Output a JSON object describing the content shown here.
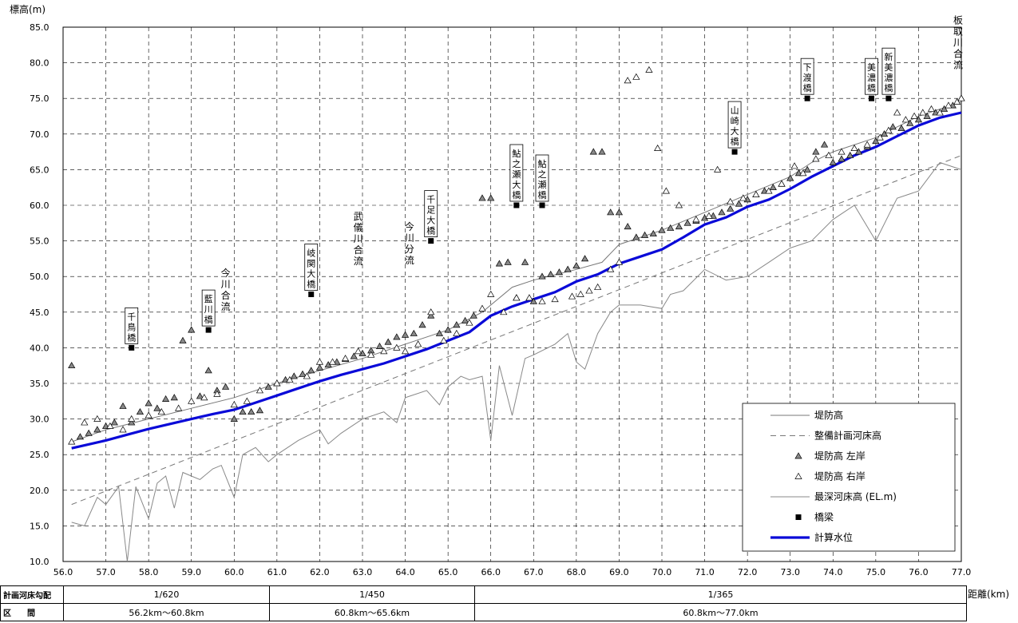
{
  "chart_data": {
    "type": "line",
    "ylabel": "標高(m)",
    "xlabel": "距離(km)",
    "xlim": [
      56.0,
      77.0
    ],
    "ylim": [
      10.0,
      85.0
    ],
    "x_ticks": [
      56.0,
      57.0,
      58.0,
      59.0,
      60.0,
      61.0,
      62.0,
      63.0,
      64.0,
      65.0,
      66.0,
      67.0,
      68.0,
      69.0,
      70.0,
      71.0,
      72.0,
      73.0,
      74.0,
      75.0,
      76.0,
      77.0
    ],
    "x_tick_labels": [
      "56.0",
      "57.0",
      "58.0",
      "59.0",
      "60.0",
      "61.0",
      "62.0",
      "63.0",
      "64.0",
      "65.0",
      "66.0",
      "67.0",
      "68.0",
      "69.0",
      "70.0",
      "71.0",
      "72.0",
      "73.0",
      "74.0",
      "75.0",
      "76.0",
      "77.0"
    ],
    "y_ticks": [
      10.0,
      15.0,
      20.0,
      25.0,
      30.0,
      35.0,
      40.0,
      45.0,
      50.0,
      55.0,
      60.0,
      65.0,
      70.0,
      75.0,
      80.0,
      85.0
    ],
    "y_tick_labels": [
      "10.0",
      "15.0",
      "20.0",
      "25.0",
      "30.0",
      "35.0",
      "40.0",
      "45.0",
      "50.0",
      "55.0",
      "60.0",
      "65.0",
      "70.0",
      "75.0",
      "80.0",
      "85.0"
    ],
    "grid": true,
    "legend_position": "bottom-right",
    "colors": {
      "water": "#0a0ad8",
      "levee": "#888888",
      "bed": "#888888",
      "plan": "#888888"
    },
    "legend": [
      {
        "key": "levee",
        "label": "堤防高"
      },
      {
        "key": "plan",
        "label": "整備計画河床高"
      },
      {
        "key": "left",
        "label": "堤防高 左岸"
      },
      {
        "key": "right",
        "label": "堤防高 右岸"
      },
      {
        "key": "bed",
        "label": "最深河床高 (EL.m)"
      },
      {
        "key": "bridge",
        "label": "橋梁"
      },
      {
        "key": "water",
        "label": "計算水位"
      }
    ],
    "series": [
      {
        "name": "堤防高",
        "key": "levee",
        "x": [
          56.2,
          57.0,
          58.0,
          59.0,
          60.0,
          61.0,
          62.0,
          63.0,
          64.0,
          65.0,
          65.8,
          66.5,
          67.0,
          68.0,
          68.6,
          69.0,
          70.0,
          71.0,
          72.0,
          73.0,
          73.5,
          74.0,
          75.0,
          76.0,
          77.0
        ],
        "y": [
          26.8,
          28.5,
          30.0,
          31.5,
          33.0,
          35.0,
          36.8,
          38.5,
          40.5,
          42.5,
          45.0,
          48.5,
          49.5,
          51.0,
          52.0,
          54.5,
          56.5,
          59.0,
          61.5,
          64.0,
          66.0,
          67.5,
          69.5,
          72.5,
          74.5
        ]
      },
      {
        "name": "整備計画河床高",
        "key": "plan",
        "x": [
          56.2,
          77.0
        ],
        "y": [
          18.0,
          67.0
        ]
      },
      {
        "name": "最深河床高 (EL.m)",
        "key": "bed",
        "x": [
          56.2,
          56.5,
          56.8,
          57.0,
          57.3,
          57.5,
          57.7,
          58.0,
          58.2,
          58.4,
          58.6,
          58.8,
          59.0,
          59.2,
          59.5,
          59.7,
          60.0,
          60.2,
          60.5,
          60.8,
          61.0,
          61.5,
          62.0,
          62.2,
          62.5,
          63.0,
          63.5,
          63.8,
          64.0,
          64.5,
          64.8,
          65.0,
          65.3,
          65.5,
          65.8,
          66.0,
          66.2,
          66.5,
          66.8,
          67.0,
          67.5,
          67.8,
          68.0,
          68.2,
          68.5,
          68.8,
          69.0,
          69.5,
          70.0,
          70.2,
          70.5,
          71.0,
          71.5,
          72.0,
          72.5,
          73.0,
          73.5,
          74.0,
          74.5,
          75.0,
          75.5,
          76.0,
          76.5,
          77.0
        ],
        "y": [
          15.5,
          15.0,
          19.0,
          18.0,
          20.5,
          10.0,
          20.5,
          16.0,
          21.0,
          22.0,
          17.5,
          22.5,
          22.0,
          21.5,
          23.0,
          23.5,
          19.0,
          25.0,
          26.0,
          24.0,
          25.0,
          27.0,
          28.5,
          26.5,
          28.0,
          30.0,
          31.0,
          29.5,
          33.0,
          34.0,
          32.0,
          34.5,
          36.0,
          35.5,
          36.0,
          27.0,
          37.5,
          30.5,
          38.5,
          39.0,
          40.5,
          42.0,
          38.0,
          37.0,
          42.0,
          45.0,
          46.0,
          46.0,
          45.5,
          47.5,
          48.0,
          51.0,
          49.5,
          50.0,
          52.0,
          54.0,
          55.0,
          58.0,
          60.0,
          55.0,
          61.0,
          62.0,
          66.0,
          65.0
        ]
      },
      {
        "name": "計算水位",
        "key": "water",
        "x": [
          56.2,
          56.5,
          57.0,
          57.5,
          58.0,
          58.5,
          59.0,
          59.5,
          60.0,
          60.5,
          61.0,
          61.5,
          62.0,
          62.5,
          63.0,
          63.5,
          64.0,
          64.5,
          65.0,
          65.5,
          66.0,
          66.5,
          67.0,
          67.5,
          68.0,
          68.5,
          69.0,
          69.5,
          70.0,
          70.5,
          71.0,
          71.5,
          72.0,
          72.5,
          73.0,
          73.5,
          74.0,
          74.5,
          75.0,
          75.5,
          76.0,
          76.5,
          77.0
        ],
        "y": [
          25.9,
          26.3,
          27.0,
          27.8,
          28.6,
          29.3,
          30.0,
          30.7,
          31.3,
          32.3,
          33.3,
          34.3,
          35.3,
          36.2,
          37.0,
          37.8,
          38.8,
          39.8,
          41.0,
          42.2,
          44.5,
          45.8,
          46.8,
          47.8,
          49.3,
          50.3,
          51.8,
          52.8,
          53.8,
          55.5,
          57.3,
          58.3,
          59.8,
          60.8,
          62.3,
          64.0,
          65.5,
          67.0,
          68.2,
          69.7,
          71.2,
          72.3,
          73.0
        ]
      }
    ],
    "left_bank_points": {
      "x": [
        56.2,
        56.4,
        56.6,
        56.8,
        57.0,
        57.2,
        57.4,
        57.6,
        57.8,
        58.0,
        58.2,
        58.4,
        58.6,
        58.8,
        59.0,
        59.2,
        59.4,
        59.6,
        59.8,
        60.0,
        60.2,
        60.4,
        60.6,
        60.8,
        61.0,
        61.2,
        61.4,
        61.6,
        61.8,
        62.0,
        62.2,
        62.4,
        62.6,
        62.8,
        63.0,
        63.2,
        63.4,
        63.6,
        63.8,
        64.0,
        64.2,
        64.4,
        64.6,
        64.8,
        65.0,
        65.2,
        65.4,
        65.6,
        65.8,
        66.0,
        66.2,
        66.4,
        66.6,
        66.8,
        67.0,
        67.2,
        67.4,
        67.6,
        67.8,
        68.0,
        68.2,
        68.4,
        68.6,
        68.8,
        69.0,
        69.2,
        69.4,
        69.6,
        69.8,
        70.0,
        70.2,
        70.4,
        70.6,
        70.8,
        71.0,
        71.2,
        71.4,
        71.6,
        71.8,
        72.0,
        72.2,
        72.4,
        72.6,
        72.8,
        73.0,
        73.2,
        73.4,
        73.6,
        73.8,
        74.0,
        74.2,
        74.4,
        74.6,
        74.8,
        75.0,
        75.2,
        75.4,
        75.6,
        75.8,
        76.0,
        76.2,
        76.4,
        76.6,
        76.8,
        77.0
      ],
      "y": [
        37.5,
        27.5,
        28.0,
        28.5,
        29.0,
        29.5,
        31.8,
        29.5,
        31.0,
        32.2,
        31.5,
        32.8,
        33.0,
        41.0,
        42.5,
        33.2,
        36.8,
        34.0,
        34.5,
        30.0,
        31.0,
        31.0,
        31.2,
        34.5,
        35.0,
        35.5,
        36.0,
        36.3,
        36.8,
        37.2,
        37.6,
        38.0,
        38.4,
        38.8,
        39.2,
        39.6,
        40.2,
        40.8,
        41.5,
        41.8,
        42.0,
        43.2,
        44.5,
        42.0,
        42.5,
        43.2,
        43.8,
        44.5,
        61.0,
        61.0,
        51.8,
        52.0,
        47.0,
        52.0,
        46.5,
        50.0,
        50.3,
        50.6,
        51.0,
        51.5,
        52.5,
        67.5,
        67.5,
        59.0,
        59.0,
        57.0,
        55.5,
        55.8,
        56.0,
        56.5,
        56.8,
        57.0,
        57.5,
        57.8,
        58.2,
        58.5,
        59.0,
        59.5,
        60.2,
        60.8,
        61.5,
        62.0,
        62.5,
        63.0,
        63.8,
        64.5,
        65.0,
        67.5,
        68.5,
        66.0,
        66.5,
        67.0,
        67.5,
        68.2,
        69.0,
        70.0,
        71.0,
        70.8,
        71.5,
        72.0,
        72.5,
        73.0,
        73.5,
        74.0,
        75.0
      ],
      "render_limit": 0
    },
    "bridges": [
      {
        "name": "千鳥橋",
        "x": 57.6,
        "y": 40.0
      },
      {
        "name": "藍川橋",
        "x": 59.4,
        "y": 42.5
      },
      {
        "name": "岐関大橋",
        "x": 61.8,
        "y": 47.5
      },
      {
        "name": "千足大橋",
        "x": 64.6,
        "y": 55.0
      },
      {
        "name": "鮎之瀬大橋",
        "x": 66.6,
        "y": 60.0
      },
      {
        "name": "鮎之瀬橋",
        "x": 67.2,
        "y": 60.0
      },
      {
        "name": "山崎大橋",
        "x": 71.7,
        "y": 67.5
      },
      {
        "name": "下渡橋",
        "x": 73.4,
        "y": 75.0
      },
      {
        "name": "美濃橋",
        "x": 74.9,
        "y": 75.0
      },
      {
        "name": "新美濃橋",
        "x": 75.3,
        "y": 75.0
      }
    ],
    "annotations": [
      {
        "text": "今川合流",
        "x": 59.8,
        "y": 50.0
      },
      {
        "text": "武儀川合流",
        "x": 62.9,
        "y": 58.0
      },
      {
        "text": "今川分流",
        "x": 64.1,
        "y": 56.5
      },
      {
        "text": "板取川合流",
        "x": 77.0,
        "y": 85.5
      }
    ]
  },
  "left_points": [
    [
      56.2,
      37.5
    ],
    [
      56.4,
      27.5
    ],
    [
      56.6,
      28.0
    ],
    [
      56.8,
      28.5
    ],
    [
      57.0,
      29.0
    ],
    [
      57.2,
      29.5
    ],
    [
      57.4,
      31.8
    ],
    [
      57.6,
      29.5
    ],
    [
      57.8,
      31.0
    ],
    [
      58.0,
      32.2
    ],
    [
      58.2,
      31.5
    ],
    [
      58.4,
      32.8
    ],
    [
      58.6,
      33.0
    ],
    [
      58.8,
      41.0
    ],
    [
      59.0,
      42.5
    ],
    [
      59.2,
      33.2
    ],
    [
      59.4,
      36.8
    ],
    [
      59.6,
      34.0
    ],
    [
      59.8,
      34.5
    ],
    [
      60.0,
      30.0
    ],
    [
      60.2,
      31.0
    ],
    [
      60.4,
      31.0
    ],
    [
      60.6,
      31.2
    ],
    [
      60.8,
      34.5
    ],
    [
      61.0,
      35.0
    ],
    [
      61.2,
      35.5
    ],
    [
      61.4,
      36.0
    ],
    [
      61.6,
      36.3
    ],
    [
      61.8,
      36.8
    ],
    [
      62.0,
      37.2
    ],
    [
      62.2,
      37.6
    ],
    [
      62.4,
      38.0
    ],
    [
      62.6,
      38.4
    ],
    [
      62.8,
      38.8
    ],
    [
      63.0,
      39.2
    ],
    [
      63.2,
      39.6
    ],
    [
      63.4,
      40.2
    ],
    [
      63.6,
      40.8
    ],
    [
      63.8,
      41.5
    ],
    [
      64.0,
      41.8
    ],
    [
      64.2,
      42.0
    ],
    [
      64.4,
      43.2
    ],
    [
      64.6,
      44.5
    ],
    [
      64.8,
      42.0
    ],
    [
      65.0,
      42.5
    ],
    [
      65.2,
      43.2
    ],
    [
      65.4,
      43.8
    ],
    [
      65.6,
      44.5
    ],
    [
      65.8,
      61.0
    ],
    [
      66.0,
      61.0
    ],
    [
      66.2,
      51.8
    ],
    [
      66.4,
      52.0
    ],
    [
      66.6,
      47.0
    ],
    [
      66.8,
      52.0
    ],
    [
      67.0,
      46.5
    ],
    [
      67.2,
      50.0
    ],
    [
      67.4,
      50.3
    ],
    [
      67.6,
      50.6
    ],
    [
      67.8,
      51.0
    ],
    [
      68.0,
      51.5
    ],
    [
      68.2,
      52.5
    ],
    [
      68.4,
      67.5
    ],
    [
      68.6,
      67.5
    ],
    [
      68.8,
      59.0
    ],
    [
      69.0,
      59.0
    ],
    [
      69.2,
      57.0
    ],
    [
      69.4,
      55.5
    ],
    [
      69.6,
      55.8
    ],
    [
      69.8,
      56.0
    ],
    [
      70.0,
      56.5
    ],
    [
      70.2,
      56.8
    ],
    [
      70.4,
      57.0
    ],
    [
      70.6,
      57.5
    ],
    [
      70.8,
      57.8
    ],
    [
      71.0,
      58.2
    ],
    [
      71.2,
      58.5
    ],
    [
      71.4,
      59.0
    ],
    [
      71.6,
      59.5
    ],
    [
      71.8,
      60.2
    ],
    [
      72.0,
      60.8
    ],
    [
      72.2,
      61.5
    ],
    [
      72.4,
      62.0
    ],
    [
      72.6,
      62.5
    ],
    [
      72.8,
      63.0
    ],
    [
      73.0,
      63.8
    ],
    [
      73.2,
      64.5
    ],
    [
      73.4,
      65.0
    ],
    [
      73.6,
      67.5
    ],
    [
      73.8,
      68.5
    ],
    [
      74.0,
      66.0
    ],
    [
      74.2,
      66.5
    ],
    [
      74.4,
      67.0
    ],
    [
      74.6,
      67.5
    ],
    [
      74.8,
      68.2
    ],
    [
      75.0,
      69.0
    ],
    [
      75.2,
      70.0
    ],
    [
      75.4,
      71.0
    ],
    [
      75.6,
      70.8
    ],
    [
      75.8,
      71.5
    ],
    [
      76.0,
      72.0
    ],
    [
      76.2,
      72.5
    ],
    [
      76.4,
      73.0
    ],
    [
      76.6,
      73.5
    ],
    [
      76.8,
      74.0
    ],
    [
      77.0,
      75.0
    ]
  ],
  "right_points": [
    [
      56.2,
      26.8
    ],
    [
      56.5,
      29.5
    ],
    [
      56.8,
      30.0
    ],
    [
      57.1,
      29.0
    ],
    [
      57.4,
      28.5
    ],
    [
      57.6,
      30.0
    ],
    [
      58.0,
      30.5
    ],
    [
      58.3,
      31.0
    ],
    [
      58.7,
      31.5
    ],
    [
      59.0,
      32.5
    ],
    [
      59.3,
      33.0
    ],
    [
      59.6,
      33.5
    ],
    [
      60.0,
      32.0
    ],
    [
      60.3,
      32.5
    ],
    [
      60.6,
      34.0
    ],
    [
      61.0,
      35.0
    ],
    [
      61.3,
      35.5
    ],
    [
      61.7,
      36.0
    ],
    [
      62.0,
      38.0
    ],
    [
      62.3,
      38.0
    ],
    [
      62.6,
      38.5
    ],
    [
      62.9,
      39.5
    ],
    [
      63.2,
      39.0
    ],
    [
      63.5,
      39.5
    ],
    [
      63.8,
      40.0
    ],
    [
      64.0,
      39.5
    ],
    [
      64.3,
      40.5
    ],
    [
      64.6,
      45.0
    ],
    [
      64.9,
      41.0
    ],
    [
      65.2,
      42.0
    ],
    [
      65.5,
      43.5
    ],
    [
      65.8,
      45.5
    ],
    [
      66.0,
      47.5
    ],
    [
      66.3,
      45.0
    ],
    [
      66.6,
      47.0
    ],
    [
      66.9,
      47.0
    ],
    [
      67.2,
      46.5
    ],
    [
      67.5,
      46.8
    ],
    [
      67.9,
      47.2
    ],
    [
      68.1,
      47.5
    ],
    [
      68.3,
      48.0
    ],
    [
      68.5,
      48.5
    ],
    [
      68.8,
      51.0
    ],
    [
      69.0,
      52.0
    ],
    [
      69.2,
      77.5
    ],
    [
      69.4,
      78.0
    ],
    [
      69.7,
      79.0
    ],
    [
      69.9,
      68.0
    ],
    [
      70.1,
      62.0
    ],
    [
      70.4,
      60.0
    ],
    [
      70.8,
      58.0
    ],
    [
      71.1,
      58.5
    ],
    [
      71.3,
      65.0
    ],
    [
      71.6,
      60.5
    ],
    [
      71.9,
      61.0
    ],
    [
      72.2,
      61.5
    ],
    [
      72.5,
      62.0
    ],
    [
      72.8,
      63.0
    ],
    [
      73.1,
      65.5
    ],
    [
      73.3,
      64.5
    ],
    [
      73.6,
      66.5
    ],
    [
      73.9,
      67.0
    ],
    [
      74.2,
      67.5
    ],
    [
      74.5,
      68.0
    ],
    [
      74.8,
      68.5
    ],
    [
      75.1,
      69.5
    ],
    [
      75.3,
      70.5
    ],
    [
      75.5,
      73.0
    ],
    [
      75.7,
      72.0
    ],
    [
      75.9,
      72.5
    ],
    [
      76.1,
      73.0
    ],
    [
      76.3,
      73.5
    ],
    [
      76.5,
      73.0
    ],
    [
      76.7,
      74.0
    ],
    [
      76.9,
      74.5
    ],
    [
      77.0,
      75.0
    ]
  ],
  "table": {
    "row1_label": "計画河床勾配",
    "row2_label": "区　　間",
    "row1": [
      "1/620",
      "1/450",
      "1/365"
    ],
    "row2": [
      "56.2km～60.8km",
      "60.8km～65.6km",
      "60.8km～77.0km"
    ],
    "distance_label": "距離(km)"
  }
}
